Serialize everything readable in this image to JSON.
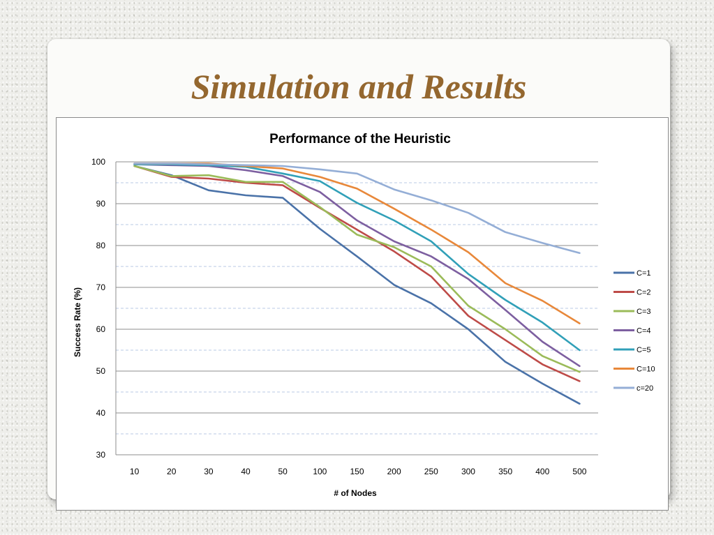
{
  "slide": {
    "title": "Simulation and Results"
  },
  "chart_data": {
    "type": "line",
    "title": "Performance of the Heuristic",
    "xlabel": "# of Nodes",
    "ylabel": "Success Rate (%)",
    "categories": [
      "10",
      "20",
      "30",
      "40",
      "50",
      "100",
      "150",
      "200",
      "250",
      "300",
      "350",
      "400",
      "500"
    ],
    "ylim": [
      30,
      100
    ],
    "yticks": [
      30,
      40,
      50,
      60,
      70,
      80,
      90,
      100
    ],
    "grid": "major solid gray, minor dashed light blue",
    "legend_position": "right",
    "series": [
      {
        "name": "C=1",
        "color": "#4a72a8",
        "values": [
          99.0,
          96.8,
          93.2,
          92.0,
          91.4,
          84.0,
          77.4,
          70.6,
          66.2,
          60.0,
          52.2,
          47.0,
          42.2
        ]
      },
      {
        "name": "C=2",
        "color": "#be4b48",
        "values": [
          99.0,
          96.4,
          96.0,
          95.0,
          94.4,
          89.0,
          83.8,
          78.6,
          72.6,
          63.2,
          57.4,
          51.6,
          47.6
        ]
      },
      {
        "name": "C=3",
        "color": "#9bbb59",
        "values": [
          99.0,
          96.6,
          96.8,
          95.2,
          95.2,
          89.2,
          82.6,
          79.6,
          75.0,
          65.6,
          60.0,
          53.6,
          49.8
        ]
      },
      {
        "name": "C=4",
        "color": "#7d5fa0",
        "values": [
          99.4,
          99.2,
          99.0,
          98.0,
          96.6,
          92.8,
          86.0,
          81.0,
          77.4,
          72.0,
          64.6,
          57.0,
          51.2
        ]
      },
      {
        "name": "C=5",
        "color": "#31a0b8",
        "values": [
          99.4,
          99.4,
          99.2,
          98.8,
          97.2,
          95.4,
          90.2,
          86.0,
          81.0,
          73.2,
          67.0,
          61.6,
          55.0
        ]
      },
      {
        "name": "C=10",
        "color": "#e8883a",
        "values": [
          99.6,
          99.6,
          99.6,
          99.0,
          98.4,
          96.4,
          93.6,
          88.8,
          83.8,
          78.4,
          71.0,
          66.8,
          61.4
        ]
      },
      {
        "name": "c=20",
        "color": "#94aed6",
        "values": [
          99.6,
          99.6,
          99.4,
          99.2,
          99.0,
          98.2,
          97.2,
          93.4,
          90.8,
          87.8,
          83.2,
          80.6,
          78.2
        ]
      }
    ]
  }
}
